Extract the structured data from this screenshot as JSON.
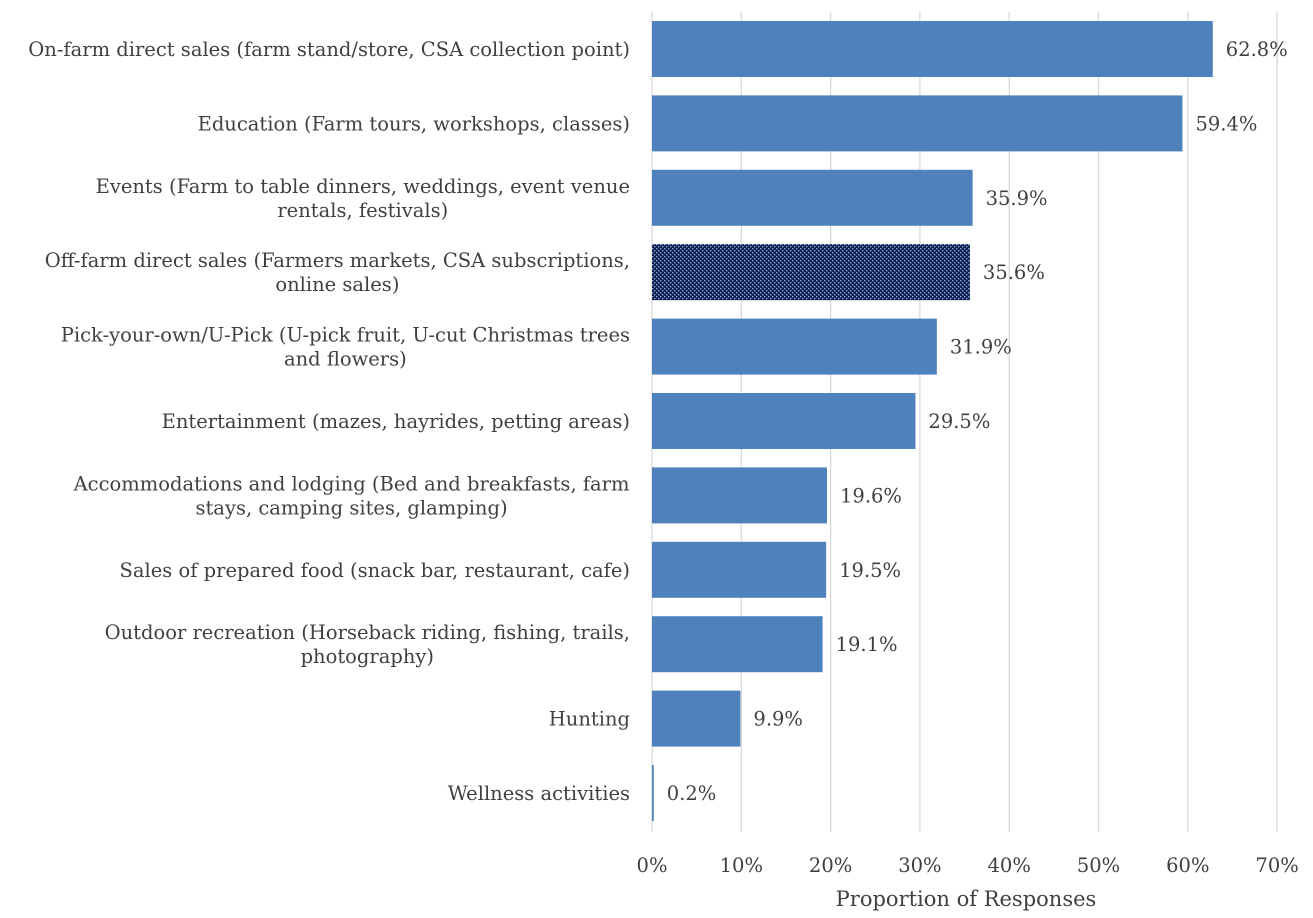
{
  "chart_data": {
    "type": "bar",
    "orientation": "horizontal",
    "title": "",
    "xlabel": "Proportion of Responses",
    "ylabel": "",
    "xlim": [
      0,
      70
    ],
    "x_ticks": [
      "0%",
      "10%",
      "20%",
      "30%",
      "40%",
      "50%",
      "60%",
      "70%"
    ],
    "grid": "vertical",
    "categories": [
      [
        "On-farm direct sales (farm stand/store, CSA collection point)"
      ],
      [
        "Education (Farm tours, workshops, classes)"
      ],
      [
        "Events (Farm to table dinners, weddings, event venue",
        "rentals, festivals)"
      ],
      [
        "Off-farm direct sales (Farmers markets, CSA subscriptions,",
        "online sales)"
      ],
      [
        "Pick-your-own/U-Pick (U-pick fruit, U-cut Christmas trees",
        "and flowers)"
      ],
      [
        "Entertainment (mazes, hayrides, petting areas)"
      ],
      [
        "Accommodations and lodging (Bed and breakfasts, farm",
        "stays, camping sites, glamping)"
      ],
      [
        "Sales of prepared food (snack bar, restaurant, cafe)"
      ],
      [
        "Outdoor recreation (Horseback riding, fishing, trails,",
        "photography)"
      ],
      [
        "Hunting"
      ],
      [
        "Wellness activities"
      ]
    ],
    "values": [
      62.8,
      59.4,
      35.9,
      35.6,
      31.9,
      29.5,
      19.6,
      19.5,
      19.1,
      9.9,
      0.2
    ],
    "value_labels": [
      "62.8%",
      "59.4%",
      "35.9%",
      "35.6%",
      "31.9%",
      "29.5%",
      "19.6%",
      "19.5%",
      "19.1%",
      "9.9%",
      "0.2%"
    ],
    "bar_color": "#4f81bd",
    "highlight_index": 3,
    "highlight_color": "#0b1f4d",
    "grid_color": "#d9d9d9",
    "text_color": "#404040"
  }
}
